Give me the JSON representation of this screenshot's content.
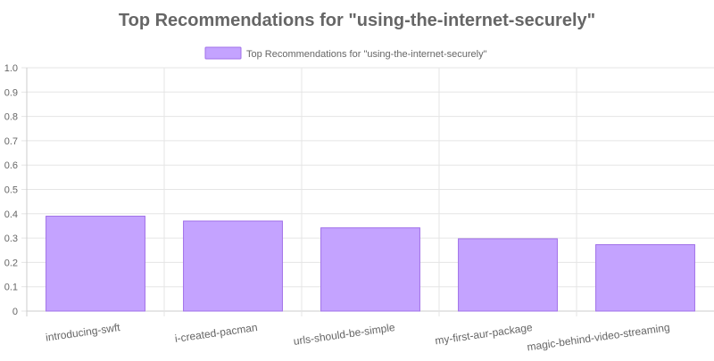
{
  "chart_data": {
    "type": "bar",
    "title": "Top Recommendations for \"using-the-internet-securely\"",
    "categories": [
      "introducing-swft",
      "i-created-pacman",
      "urls-should-be-simple",
      "my-first-aur-package",
      "magic-behind-video-streaming"
    ],
    "series": [
      {
        "name": "Top Recommendations for \"using-the-internet-securely\"",
        "values": [
          0.39,
          0.37,
          0.342,
          0.297,
          0.273
        ],
        "color": "#c4a3ff",
        "border_color": "#a070e8"
      }
    ],
    "yticks": [
      "0",
      "0.1",
      "0.2",
      "0.3",
      "0.4",
      "0.5",
      "0.6",
      "0.7",
      "0.8",
      "0.9",
      "1.0"
    ],
    "ylim": [
      0,
      1.0
    ],
    "grid": true,
    "legend_position": "top"
  }
}
